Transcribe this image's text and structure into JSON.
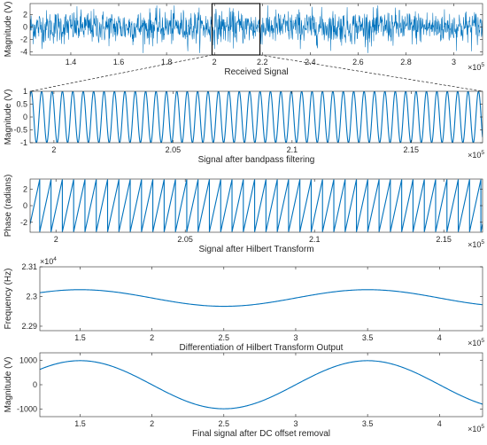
{
  "colors": {
    "signal": "#0072BD",
    "axis": "#262626",
    "zoom": "#000000"
  },
  "chart_data": [
    {
      "type": "line",
      "xlabel": "Received Signal",
      "ylabel": "Magnitude (V)",
      "xlim": [
        1.23,
        3.12
      ],
      "ylim": [
        -4.5,
        3.8
      ],
      "x_ticks": [
        "1.4",
        "1.6",
        "1.8",
        "2",
        "2.2",
        "2.4",
        "2.6",
        "2.8",
        "3"
      ],
      "x_tick_values": [
        1.4,
        1.6,
        1.8,
        2.0,
        2.2,
        2.4,
        2.6,
        2.8,
        3.0
      ],
      "y_ticks": [
        "-4",
        "-2",
        "0",
        "2"
      ],
      "y_tick_values": [
        -4,
        -2,
        0,
        2
      ],
      "x_exponent": {
        "base": "×10",
        "power": "5"
      },
      "signal": {
        "kind": "noise",
        "amplitude": 3.2,
        "points": 1400
      },
      "zoom_box": {
        "x": [
          1.99,
          2.19
        ],
        "y": [
          -4.5,
          3.8
        ]
      }
    },
    {
      "type": "line",
      "xlabel": "Signal after bandpass filtering",
      "ylabel": "Magnitude (V)",
      "xlim": [
        1.99,
        2.18
      ],
      "ylim": [
        -1,
        1
      ],
      "x_ticks": [
        "2",
        "2.05",
        "2.1",
        "2.15"
      ],
      "x_tick_values": [
        2.0,
        2.05,
        2.1,
        2.15
      ],
      "y_ticks": [
        "-1",
        "-0.5",
        "0",
        "0.5",
        "1"
      ],
      "y_tick_values": [
        -1,
        -0.5,
        0,
        0.5,
        1
      ],
      "x_exponent": {
        "base": "×10",
        "power": "5"
      },
      "signal": {
        "kind": "sine",
        "cycles": 43.5,
        "amplitude": 1
      }
    },
    {
      "type": "line",
      "xlabel": "Signal after Hilbert Transform",
      "ylabel": "Phase (radians)",
      "xlim": [
        1.99,
        2.165
      ],
      "ylim": [
        -3.2,
        3.2
      ],
      "x_ticks": [
        "2",
        "2.05",
        "2.1",
        "2.15"
      ],
      "x_tick_values": [
        2.0,
        2.05,
        2.1,
        2.15
      ],
      "y_ticks": [
        "-2",
        "0",
        "2"
      ],
      "y_tick_values": [
        -2,
        0,
        2
      ],
      "x_exponent": {
        "base": "×10",
        "power": "5"
      },
      "signal": {
        "kind": "sawtooth",
        "cycles": 40,
        "amplitude": 3.14159
      }
    },
    {
      "type": "line",
      "xlabel": "Differentiation of Hilbert Transform Output",
      "ylabel": "Frequency (Hz)",
      "xlim": [
        1.22,
        4.3
      ],
      "ylim": [
        2.2885,
        2.31
      ],
      "x_ticks": [
        "1.5",
        "2",
        "2.5",
        "3",
        "3.5",
        "4"
      ],
      "x_tick_values": [
        1.5,
        2.0,
        2.5,
        3.0,
        3.5,
        4.0
      ],
      "y_ticks": [
        "2.29",
        "2.3",
        "2.31"
      ],
      "y_tick_values": [
        2.29,
        2.3,
        2.31
      ],
      "x_exponent": {
        "base": "×10",
        "power": "5"
      },
      "y_exponent": {
        "base": "×10",
        "power": "4"
      },
      "signal": {
        "kind": "cosine",
        "center": 2.2995,
        "amplitude": 0.0028,
        "period": 2.0,
        "peak_at": 1.5
      }
    },
    {
      "type": "line",
      "xlabel": "Final signal after DC offset removal",
      "ylabel": "Magnitude (V)",
      "xlim": [
        1.22,
        4.3
      ],
      "ylim": [
        -1300,
        1300
      ],
      "x_ticks": [
        "1.5",
        "2",
        "2.5",
        "3",
        "3.5",
        "4"
      ],
      "x_tick_values": [
        1.5,
        2.0,
        2.5,
        3.0,
        3.5,
        4.0
      ],
      "y_ticks": [
        "-1000",
        "0",
        "1000"
      ],
      "y_tick_values": [
        -1000,
        0,
        1000
      ],
      "x_exponent": {
        "base": "×10",
        "power": "5"
      },
      "signal": {
        "kind": "cosine",
        "center": 0,
        "amplitude": 980,
        "period": 2.0,
        "peak_at": 1.5
      }
    }
  ]
}
